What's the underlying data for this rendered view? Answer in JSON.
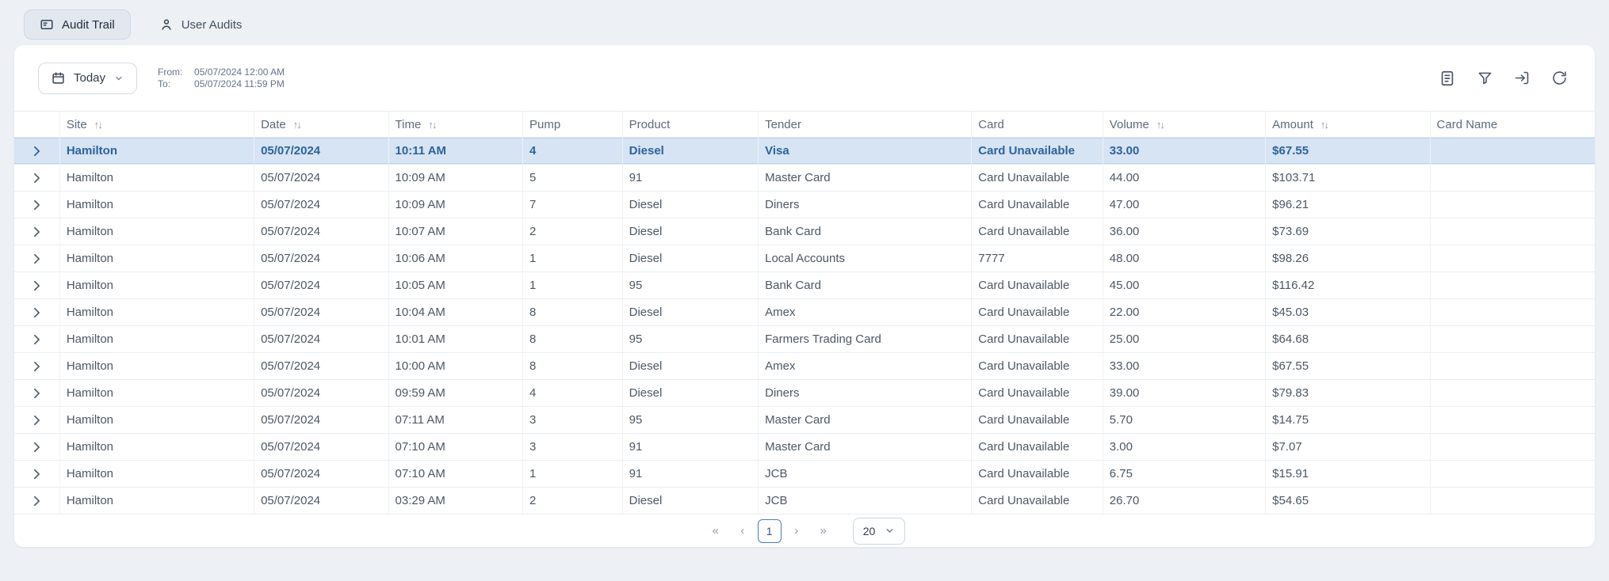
{
  "tabs": [
    {
      "label": "Audit Trail",
      "active": true
    },
    {
      "label": "User Audits",
      "active": false
    }
  ],
  "toolbar": {
    "date_range_label": "Today",
    "from_label": "From:",
    "from_value": "05/07/2024 12:00 AM",
    "to_label": "To:",
    "to_value": "05/07/2024 11:59 PM",
    "action_icons": [
      "report-icon",
      "filter-icon",
      "export-icon",
      "refresh-icon"
    ]
  },
  "table": {
    "selected_row_index": 0,
    "columns": [
      {
        "key": "site",
        "label": "Site",
        "sortable": true
      },
      {
        "key": "date",
        "label": "Date",
        "sortable": true
      },
      {
        "key": "time",
        "label": "Time",
        "sortable": true
      },
      {
        "key": "pump",
        "label": "Pump",
        "sortable": false
      },
      {
        "key": "product",
        "label": "Product",
        "sortable": false
      },
      {
        "key": "tender",
        "label": "Tender",
        "sortable": false
      },
      {
        "key": "card",
        "label": "Card",
        "sortable": false
      },
      {
        "key": "volume",
        "label": "Volume",
        "sortable": true
      },
      {
        "key": "amount",
        "label": "Amount",
        "sortable": true
      },
      {
        "key": "card_name",
        "label": "Card Name",
        "sortable": false
      }
    ],
    "rows": [
      {
        "site": "Hamilton",
        "date": "05/07/2024",
        "time": "10:11 AM",
        "pump": "4",
        "product": "Diesel",
        "tender": "Visa",
        "card": "Card Unavailable",
        "volume": "33.00",
        "amount": "$67.55",
        "card_name": ""
      },
      {
        "site": "Hamilton",
        "date": "05/07/2024",
        "time": "10:09 AM",
        "pump": "5",
        "product": "91",
        "tender": "Master Card",
        "card": "Card Unavailable",
        "volume": "44.00",
        "amount": "$103.71",
        "card_name": ""
      },
      {
        "site": "Hamilton",
        "date": "05/07/2024",
        "time": "10:09 AM",
        "pump": "7",
        "product": "Diesel",
        "tender": "Diners",
        "card": "Card Unavailable",
        "volume": "47.00",
        "amount": "$96.21",
        "card_name": ""
      },
      {
        "site": "Hamilton",
        "date": "05/07/2024",
        "time": "10:07 AM",
        "pump": "2",
        "product": "Diesel",
        "tender": "Bank Card",
        "card": "Card Unavailable",
        "volume": "36.00",
        "amount": "$73.69",
        "card_name": ""
      },
      {
        "site": "Hamilton",
        "date": "05/07/2024",
        "time": "10:06 AM",
        "pump": "1",
        "product": "Diesel",
        "tender": "Local Accounts",
        "card": "7777",
        "volume": "48.00",
        "amount": "$98.26",
        "card_name": ""
      },
      {
        "site": "Hamilton",
        "date": "05/07/2024",
        "time": "10:05 AM",
        "pump": "1",
        "product": "95",
        "tender": "Bank Card",
        "card": "Card Unavailable",
        "volume": "45.00",
        "amount": "$116.42",
        "card_name": ""
      },
      {
        "site": "Hamilton",
        "date": "05/07/2024",
        "time": "10:04 AM",
        "pump": "8",
        "product": "Diesel",
        "tender": "Amex",
        "card": "Card Unavailable",
        "volume": "22.00",
        "amount": "$45.03",
        "card_name": ""
      },
      {
        "site": "Hamilton",
        "date": "05/07/2024",
        "time": "10:01 AM",
        "pump": "8",
        "product": "95",
        "tender": "Farmers Trading Card",
        "card": "Card Unavailable",
        "volume": "25.00",
        "amount": "$64.68",
        "card_name": ""
      },
      {
        "site": "Hamilton",
        "date": "05/07/2024",
        "time": "10:00 AM",
        "pump": "8",
        "product": "Diesel",
        "tender": "Amex",
        "card": "Card Unavailable",
        "volume": "33.00",
        "amount": "$67.55",
        "card_name": ""
      },
      {
        "site": "Hamilton",
        "date": "05/07/2024",
        "time": "09:59 AM",
        "pump": "4",
        "product": "Diesel",
        "tender": "Diners",
        "card": "Card Unavailable",
        "volume": "39.00",
        "amount": "$79.83",
        "card_name": ""
      },
      {
        "site": "Hamilton",
        "date": "05/07/2024",
        "time": "07:11 AM",
        "pump": "3",
        "product": "95",
        "tender": "Master Card",
        "card": "Card Unavailable",
        "volume": "5.70",
        "amount": "$14.75",
        "card_name": ""
      },
      {
        "site": "Hamilton",
        "date": "05/07/2024",
        "time": "07:10 AM",
        "pump": "3",
        "product": "91",
        "tender": "Master Card",
        "card": "Card Unavailable",
        "volume": "3.00",
        "amount": "$7.07",
        "card_name": ""
      },
      {
        "site": "Hamilton",
        "date": "05/07/2024",
        "time": "07:10 AM",
        "pump": "1",
        "product": "91",
        "tender": "JCB",
        "card": "Card Unavailable",
        "volume": "6.75",
        "amount": "$15.91",
        "card_name": ""
      },
      {
        "site": "Hamilton",
        "date": "05/07/2024",
        "time": "03:29 AM",
        "pump": "2",
        "product": "Diesel",
        "tender": "JCB",
        "card": "Card Unavailable",
        "volume": "26.70",
        "amount": "$54.65",
        "card_name": ""
      }
    ]
  },
  "pagination": {
    "first_label": "«",
    "prev_label": "‹",
    "current_page": "1",
    "next_label": "›",
    "last_label": "»",
    "page_size": "20"
  },
  "colors": {
    "page_bg": "#edf1f6",
    "selected_row_bg": "#d6e4f4",
    "selected_row_text": "#2d6399",
    "accent_border": "#4a7fbe"
  }
}
